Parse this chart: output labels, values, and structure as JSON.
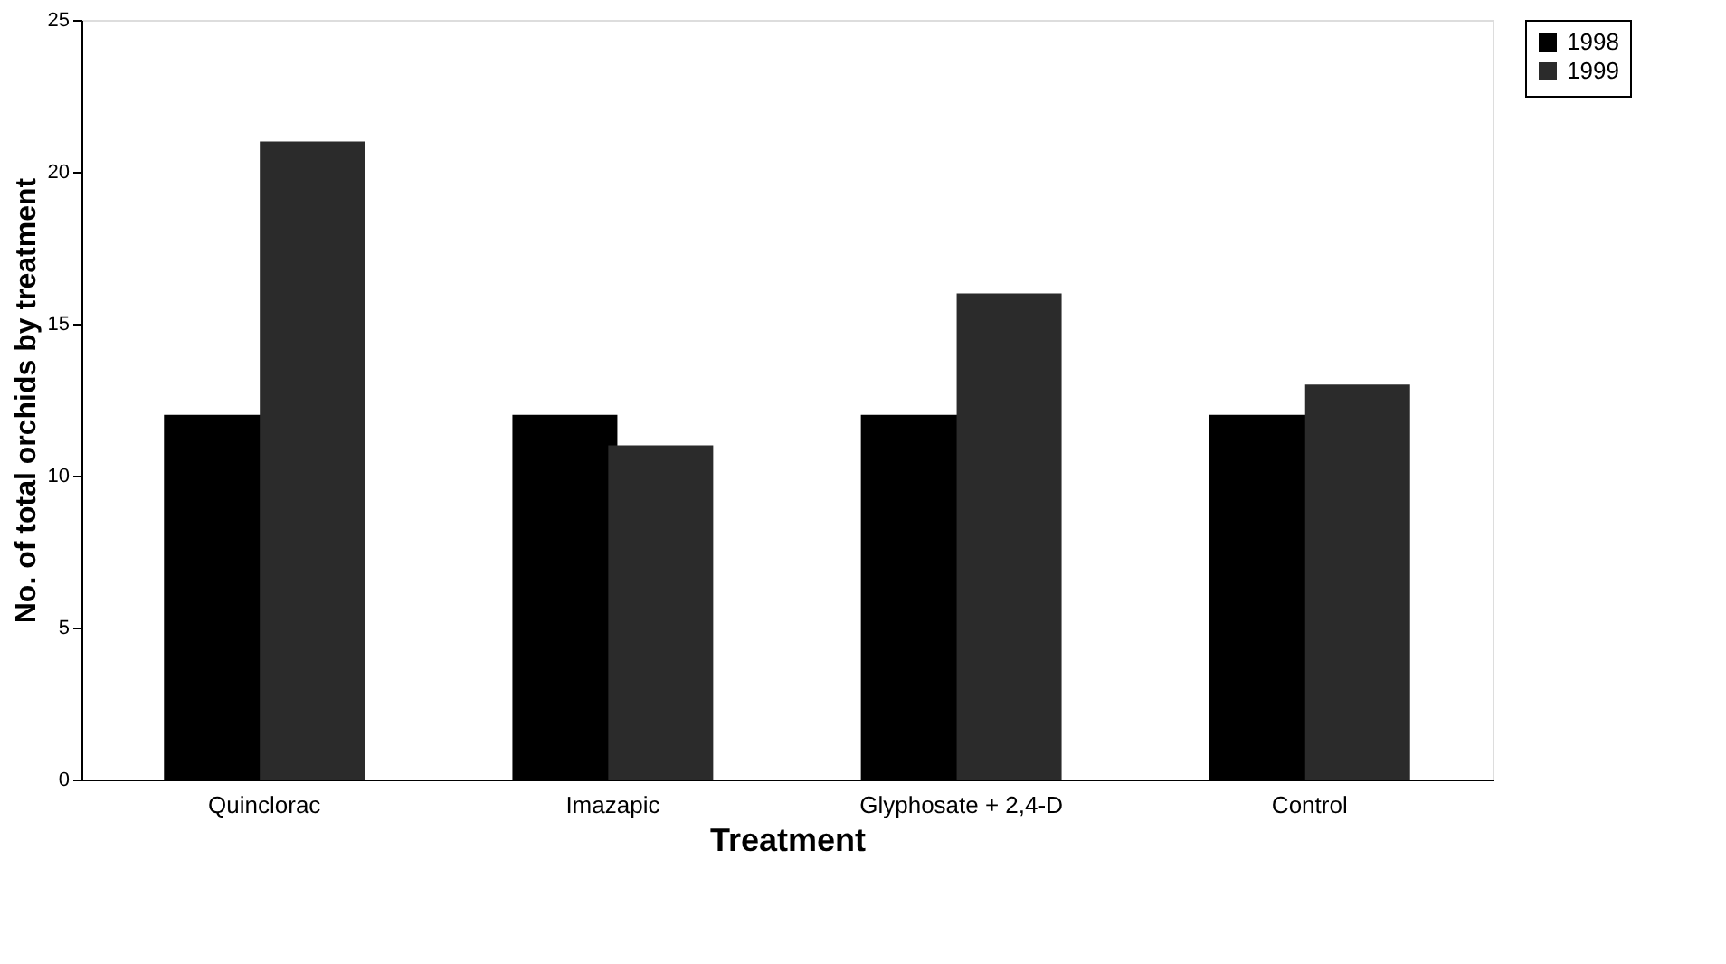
{
  "chart_data": {
    "type": "bar",
    "xlabel": "Treatment",
    "ylabel": "No. of total orchids by treatment",
    "categories": [
      "Quinclorac",
      "Imazapic",
      "Glyphosate + 2,4-D",
      "Control"
    ],
    "series": [
      {
        "name": "1998",
        "color": "#000000",
        "values": [
          12,
          12,
          12,
          12
        ]
      },
      {
        "name": "1999",
        "color": "#2b2b2b",
        "values": [
          21,
          11,
          16,
          13
        ]
      }
    ],
    "ylim": [
      0,
      25
    ],
    "yticks": [
      0,
      5,
      10,
      15,
      20,
      25
    ],
    "grid": false,
    "legend": "right"
  }
}
